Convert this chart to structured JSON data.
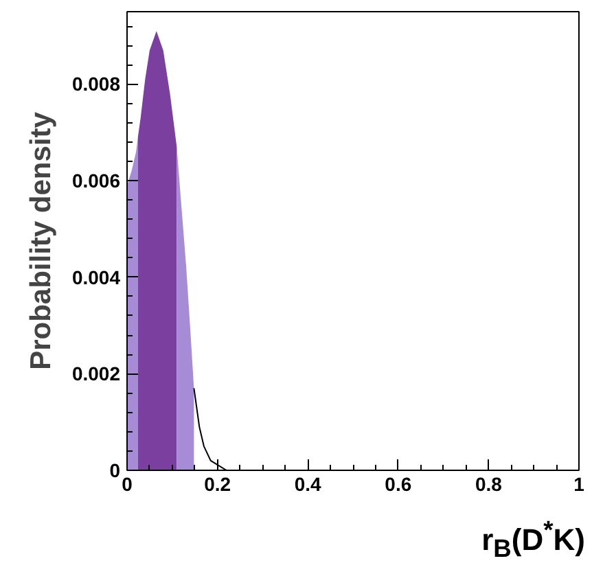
{
  "chart_data": {
    "type": "line",
    "xlabel": "r$_{B}$(D$^{*}$K)",
    "ylabel": "Probability density",
    "xlim": [
      0,
      1
    ],
    "ylim": [
      0,
      0.0095
    ],
    "xticks": [
      0,
      0.2,
      0.4,
      0.6,
      0.8,
      1
    ],
    "yticks": [
      0,
      0.002,
      0.004,
      0.006,
      0.008
    ],
    "grid": false,
    "marker": "none",
    "line_style": "solid",
    "series": [
      {
        "type": "area",
        "color": "#a68bd6",
        "x": [
          0,
          0.01,
          0.02,
          0.024
        ],
        "values": [
          0.0059,
          0.0062,
          0.0066,
          0.0069
        ]
      },
      {
        "type": "area",
        "color": "#7b3fa0",
        "x": [
          0.024,
          0.03,
          0.04,
          0.05,
          0.065,
          0.08,
          0.095,
          0.11
        ],
        "values": [
          0.0069,
          0.0073,
          0.0081,
          0.0087,
          0.0091,
          0.0087,
          0.0078,
          0.0067
        ]
      },
      {
        "type": "area",
        "color": "#a68bd6",
        "x": [
          0.11,
          0.12,
          0.131,
          0.14,
          0.148
        ],
        "values": [
          0.0067,
          0.0055,
          0.0042,
          0.0029,
          0.0017
        ]
      },
      {
        "color": "#000000",
        "x": [
          0.148,
          0.16,
          0.17,
          0.185,
          0.22,
          1
        ],
        "values": [
          0.0017,
          0.0009,
          0.0005,
          0.0002,
          0,
          0
        ]
      }
    ]
  }
}
